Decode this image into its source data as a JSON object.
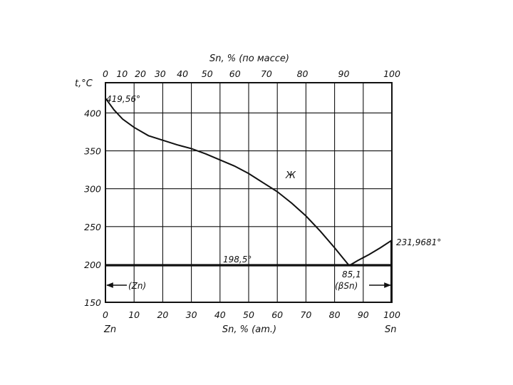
{
  "chart_data": {
    "type": "line",
    "title": "",
    "ylabel": "t,°C",
    "xlabel_bottom": "Sn, % (am.)",
    "xlabel_top": "Sn, % (по массе)",
    "x_left_label": "Zn",
    "x_right_label": "Sn",
    "xlim": [
      0,
      100
    ],
    "ylim": [
      150,
      440
    ],
    "grid": true,
    "x_bottom_ticks": [
      "0",
      "10",
      "20",
      "30",
      "40",
      "50",
      "60",
      "70",
      "80",
      "90",
      "100"
    ],
    "y_ticks": [
      "150",
      "200",
      "250",
      "300",
      "350",
      "400"
    ],
    "x_top_ticks": [
      {
        "label": "0",
        "at": 0
      },
      {
        "label": "10",
        "at": 5.8
      },
      {
        "label": "20",
        "at": 12.2
      },
      {
        "label": "30",
        "at": 19.1
      },
      {
        "label": "40",
        "at": 26.9
      },
      {
        "label": "50",
        "at": 35.5
      },
      {
        "label": "60",
        "at": 45.2
      },
      {
        "label": "70",
        "at": 56.2
      },
      {
        "label": "80",
        "at": 68.8
      },
      {
        "label": "90",
        "at": 83.2
      },
      {
        "label": "100",
        "at": 100
      }
    ],
    "series": [
      {
        "x": [
          0,
          3,
          6,
          10,
          15,
          20,
          25,
          30,
          35,
          40,
          45,
          50,
          55,
          60,
          65,
          70,
          75,
          80,
          83,
          85.1
        ],
        "y": [
          419.56,
          404,
          392,
          381,
          370,
          364,
          358,
          353,
          346,
          338,
          330,
          320,
          308,
          296,
          281,
          264,
          244,
          222,
          208,
          198.5
        ]
      },
      {
        "x": [
          85.1,
          88,
          92,
          96,
          100
        ],
        "y": [
          198.5,
          205,
          213,
          222,
          231.9681
        ]
      }
    ],
    "eutectic_line": {
      "y": 198.5,
      "x": [
        0,
        100
      ]
    },
    "annotations": {
      "zn_melting": "419,56°",
      "sn_melting": "231,9681°",
      "eutectic_temp": "198,5°",
      "eutectic_comp": "85,1",
      "liquid": "Ж",
      "zn_phase": "(Zn)",
      "bsn_phase": "(βSn)"
    }
  }
}
